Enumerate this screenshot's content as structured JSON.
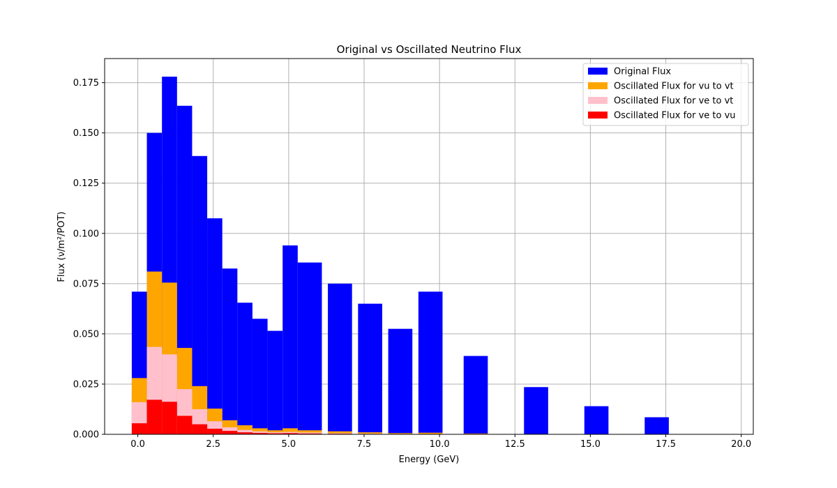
{
  "chart_data": {
    "type": "bar",
    "title": "Original vs Oscillated Neutrino Flux",
    "xlabel": "Energy (GeV)",
    "ylabel": "Flux (ν/m²/POT)",
    "xlim": [
      -1.1,
      20.4
    ],
    "ylim": [
      0,
      0.187
    ],
    "x_ticks": [
      0,
      2.5,
      5,
      7.5,
      10,
      12.5,
      15,
      17.5,
      20
    ],
    "x_tick_labels": [
      "0.0",
      "2.5",
      "5.0",
      "7.5",
      "10.0",
      "12.5",
      "15.0",
      "17.5",
      "20.0"
    ],
    "y_ticks": [
      0,
      0.025,
      0.05,
      0.075,
      0.1,
      0.125,
      0.15,
      0.175
    ],
    "y_tick_labels": [
      "0.000",
      "0.025",
      "0.050",
      "0.075",
      "0.100",
      "0.125",
      "0.150",
      "0.175"
    ],
    "grid": true,
    "legend_position": "top-right",
    "bins": [
      [
        -0.2,
        0.3
      ],
      [
        0.3,
        0.8
      ],
      [
        0.8,
        1.3
      ],
      [
        1.3,
        1.8
      ],
      [
        1.8,
        2.3
      ],
      [
        2.3,
        2.8
      ],
      [
        2.8,
        3.3
      ],
      [
        3.3,
        3.8
      ],
      [
        3.8,
        4.3
      ],
      [
        4.3,
        4.8
      ],
      [
        4.8,
        5.3
      ],
      [
        5.3,
        6.1
      ],
      [
        6.3,
        7.1
      ],
      [
        7.3,
        8.1
      ],
      [
        8.3,
        9.1
      ],
      [
        9.3,
        10.1
      ],
      [
        10.8,
        11.6
      ],
      [
        12.8,
        13.6
      ],
      [
        14.8,
        15.6
      ],
      [
        16.8,
        17.6
      ],
      [
        18.8,
        19.6
      ]
    ],
    "series": [
      {
        "name": "Original Flux",
        "color": "#0000ff",
        "values": [
          0.071,
          0.15,
          0.178,
          0.1635,
          0.1385,
          0.1075,
          0.0825,
          0.0655,
          0.0575,
          0.0515,
          0.094,
          0.0855,
          0.075,
          0.065,
          0.0525,
          0.071,
          0.039,
          0.0235,
          0.014,
          0.0085,
          0.0
        ]
      },
      {
        "name": "Oscillated Flux for vu to vt",
        "color": "#ffa500",
        "values": [
          0.028,
          0.081,
          0.0755,
          0.043,
          0.024,
          0.0128,
          0.007,
          0.0045,
          0.003,
          0.002,
          0.003,
          0.002,
          0.0015,
          0.001,
          0.0006,
          0.0008,
          0.0004,
          0.0002,
          0.0001,
          0.0001,
          0.0
        ]
      },
      {
        "name": "Oscillated Flux for ve to vt",
        "color": "#ffc0cb",
        "values": [
          0.016,
          0.0435,
          0.0398,
          0.0225,
          0.0125,
          0.0065,
          0.0035,
          0.0022,
          0.0015,
          0.001,
          0.0012,
          0.0009,
          0.0006,
          0.0004,
          0.0002,
          0.0002,
          0.0001,
          0.0,
          0.0,
          0.0,
          0.0
        ]
      },
      {
        "name": "Oscillated Flux for ve to vu",
        "color": "#ff0000",
        "values": [
          0.0055,
          0.0172,
          0.0162,
          0.0092,
          0.005,
          0.0028,
          0.0017,
          0.001,
          0.0007,
          0.0005,
          0.0006,
          0.0004,
          0.0003,
          0.0002,
          0.0001,
          0.0001,
          0.0,
          0.0,
          0.0,
          0.0,
          0.0
        ]
      }
    ]
  }
}
